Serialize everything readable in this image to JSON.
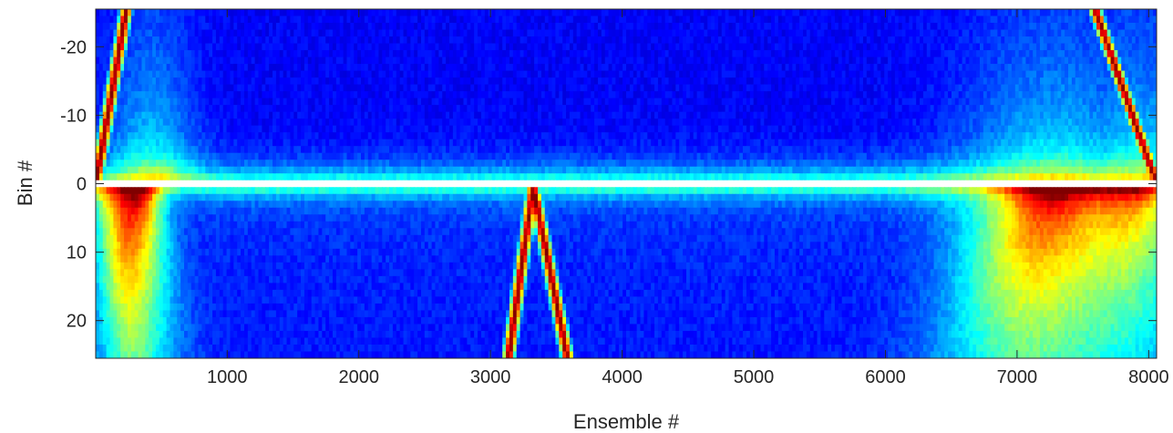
{
  "chart_data": {
    "type": "heatmap",
    "title": "",
    "xlabel": "Ensemble #",
    "ylabel": "Bin #",
    "xlim": [
      1,
      8060
    ],
    "ylim": [
      -25.5,
      25.5
    ],
    "y_reversed": true,
    "colormap": "jet",
    "grid": false,
    "x_ticks": [
      1000,
      2000,
      3000,
      4000,
      5000,
      6000,
      7000,
      8000
    ],
    "x_tick_labels": [
      "1000",
      "2000",
      "3000",
      "4000",
      "5000",
      "6000",
      "7000",
      "8000"
    ],
    "y_ticks": [
      -20,
      -10,
      0,
      10,
      20
    ],
    "y_tick_labels": [
      "-20",
      "-10",
      "0",
      "10",
      "20"
    ],
    "blank_bin": 0,
    "features": [
      {
        "kind": "wedge",
        "x_start": 130,
        "x_end": 700,
        "bins": "below 0",
        "level": "high"
      },
      {
        "kind": "wedge",
        "x_start": 6750,
        "x_end": 8060,
        "bins": "below 0",
        "level": "high"
      },
      {
        "kind": "band",
        "x_start": 100,
        "x_end": 700,
        "bins": "above 0",
        "level": "medium"
      },
      {
        "kind": "band",
        "x_start": 6700,
        "x_end": 8060,
        "bins": "above 0",
        "level": "medium"
      },
      {
        "kind": "streak",
        "x_from": 1,
        "bin_from": 0,
        "x_to": 230,
        "bin_to": -25,
        "level": "max"
      },
      {
        "kind": "streak",
        "x_from": 3320,
        "bin_from": 1,
        "x_to": 3140,
        "bin_to": 25,
        "level": "max"
      },
      {
        "kind": "streak",
        "x_from": 3330,
        "bin_from": 1,
        "x_to": 3580,
        "bin_to": 25,
        "level": "max"
      },
      {
        "kind": "streak",
        "x_from": 7600,
        "bin_from": -25,
        "x_to": 8060,
        "bin_to": 0,
        "level": "max"
      }
    ]
  }
}
